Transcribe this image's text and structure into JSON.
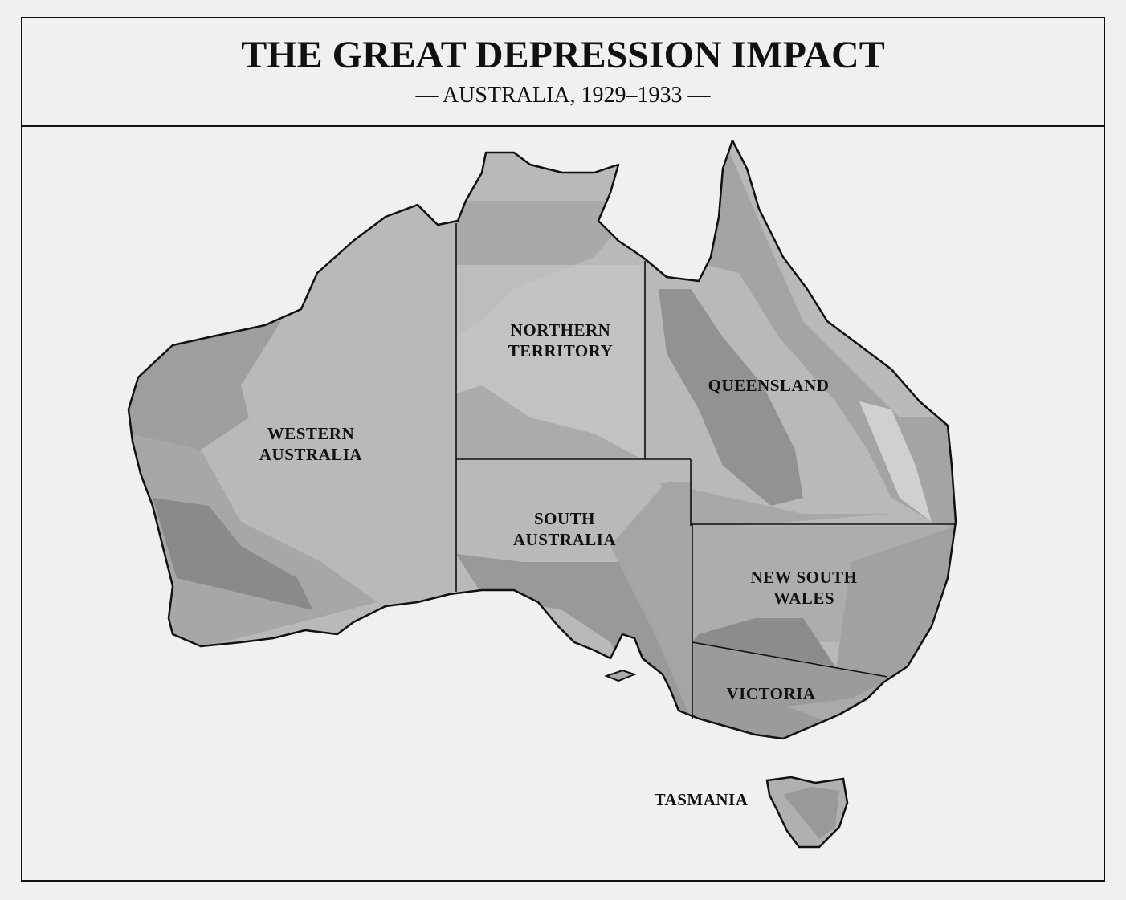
{
  "header": {
    "title": "THE GREAT DEPRESSION IMPACT",
    "subtitle": "— AUSTRALIA, 1929–1933 —"
  },
  "regions": [
    {
      "lines": [
        "WESTERN",
        "AUSTRALIA"
      ]
    },
    {
      "lines": [
        "NORTHERN",
        "TERRITORY"
      ]
    },
    {
      "lines": [
        "QUEENSLAND"
      ]
    },
    {
      "lines": [
        "SOUTH",
        "AUSTRALIA"
      ]
    },
    {
      "lines": [
        "NEW SOUTH",
        "WALES"
      ]
    },
    {
      "lines": [
        "VICTORIA"
      ]
    },
    {
      "lines": [
        "TASMANIA"
      ]
    }
  ]
}
